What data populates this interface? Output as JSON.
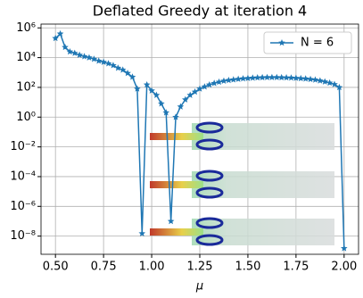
{
  "chart_data": {
    "type": "line",
    "title": "Deflated Greedy at iteration 4",
    "xlabel": "μ",
    "log_y": true,
    "grid": true,
    "legend": "upper right",
    "xlim": [
      0.425,
      2.075
    ],
    "xticks": [
      {
        "value": 0.5,
        "label": "0.50"
      },
      {
        "value": 0.75,
        "label": "0.75"
      },
      {
        "value": 1.0,
        "label": "1.00"
      },
      {
        "value": 1.25,
        "label": "1.25"
      },
      {
        "value": 1.5,
        "label": "1.50"
      },
      {
        "value": 1.75,
        "label": "1.75"
      },
      {
        "value": 2.0,
        "label": "2.00"
      }
    ],
    "ylim": [
      6e-10,
      1800000.0
    ],
    "yticks": [
      {
        "value": 1000000.0,
        "label": "10⁶"
      },
      {
        "value": 10000.0,
        "label": "10⁴"
      },
      {
        "value": 100.0,
        "label": "10²"
      },
      {
        "value": 1,
        "label": "10⁰"
      },
      {
        "value": 0.01,
        "label": "10⁻²"
      },
      {
        "value": 0.0001,
        "label": "10⁻⁴"
      },
      {
        "value": 1e-06,
        "label": "10⁻⁶"
      },
      {
        "value": 1e-08,
        "label": "10⁻⁸"
      }
    ],
    "x": [
      0.5,
      0.525,
      0.55,
      0.575,
      0.6,
      0.625,
      0.65,
      0.675,
      0.7,
      0.725,
      0.75,
      0.775,
      0.8,
      0.825,
      0.85,
      0.875,
      0.9,
      0.925,
      0.95,
      0.975,
      1.0,
      1.025,
      1.05,
      1.075,
      1.1,
      1.125,
      1.15,
      1.175,
      1.2,
      1.225,
      1.25,
      1.275,
      1.3,
      1.325,
      1.35,
      1.375,
      1.4,
      1.425,
      1.45,
      1.475,
      1.5,
      1.525,
      1.55,
      1.575,
      1.6,
      1.625,
      1.65,
      1.675,
      1.7,
      1.725,
      1.75,
      1.775,
      1.8,
      1.825,
      1.85,
      1.875,
      1.9,
      1.925,
      1.95,
      1.975,
      2.0
    ],
    "series": [
      {
        "name": "N = 6",
        "color": "#1f77b4",
        "values": [
          200000,
          400000,
          50000,
          25000,
          20000,
          15000,
          12000,
          10000,
          8000,
          6000,
          5000,
          4000,
          3000,
          2000,
          1500,
          900,
          500,
          80,
          1.5e-08,
          150,
          60,
          30,
          8,
          2,
          1e-07,
          1,
          5,
          15,
          30,
          50,
          80,
          110,
          150,
          190,
          230,
          270,
          300,
          330,
          360,
          390,
          410,
          430,
          450,
          460,
          470,
          470,
          470,
          460,
          450,
          440,
          420,
          400,
          380,
          350,
          320,
          280,
          240,
          200,
          160,
          100,
          1.5e-09
        ]
      }
    ]
  }
}
